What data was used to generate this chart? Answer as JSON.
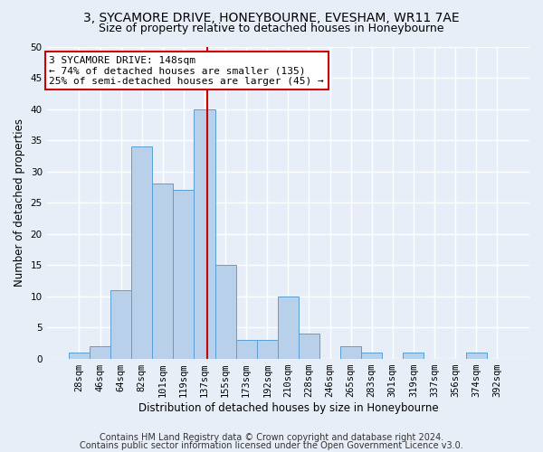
{
  "title1": "3, SYCAMORE DRIVE, HONEYBOURNE, EVESHAM, WR11 7AE",
  "title2": "Size of property relative to detached houses in Honeybourne",
  "xlabel": "Distribution of detached houses by size in Honeybourne",
  "ylabel": "Number of detached properties",
  "bin_labels": [
    "28sqm",
    "46sqm",
    "64sqm",
    "82sqm",
    "101sqm",
    "119sqm",
    "137sqm",
    "155sqm",
    "173sqm",
    "192sqm",
    "210sqm",
    "228sqm",
    "246sqm",
    "265sqm",
    "283sqm",
    "301sqm",
    "319sqm",
    "337sqm",
    "356sqm",
    "374sqm",
    "392sqm"
  ],
  "bin_values": [
    1,
    2,
    11,
    34,
    28,
    27,
    40,
    15,
    3,
    3,
    10,
    4,
    0,
    2,
    1,
    0,
    1,
    0,
    0,
    1,
    0
  ],
  "bar_color": "#b8d0ea",
  "bar_edge_color": "#5a9fd4",
  "vline_color": "#cc0000",
  "annotation_text": "3 SYCAMORE DRIVE: 148sqm\n← 74% of detached houses are smaller (135)\n25% of semi-detached houses are larger (45) →",
  "annotation_box_color": "#ffffff",
  "annotation_box_edge": "#cc0000",
  "footer1": "Contains HM Land Registry data © Crown copyright and database right 2024.",
  "footer2": "Contains public sector information licensed under the Open Government Licence v3.0.",
  "ylim": [
    0,
    50
  ],
  "yticks": [
    0,
    5,
    10,
    15,
    20,
    25,
    30,
    35,
    40,
    45,
    50
  ],
  "bg_color": "#e8eef8",
  "plot_bg_color": "#e8eef8",
  "grid_color": "#ffffff",
  "title1_fontsize": 10,
  "title2_fontsize": 9,
  "xlabel_fontsize": 8.5,
  "ylabel_fontsize": 8.5,
  "tick_fontsize": 7.5,
  "annotation_fontsize": 8,
  "footer_fontsize": 7
}
